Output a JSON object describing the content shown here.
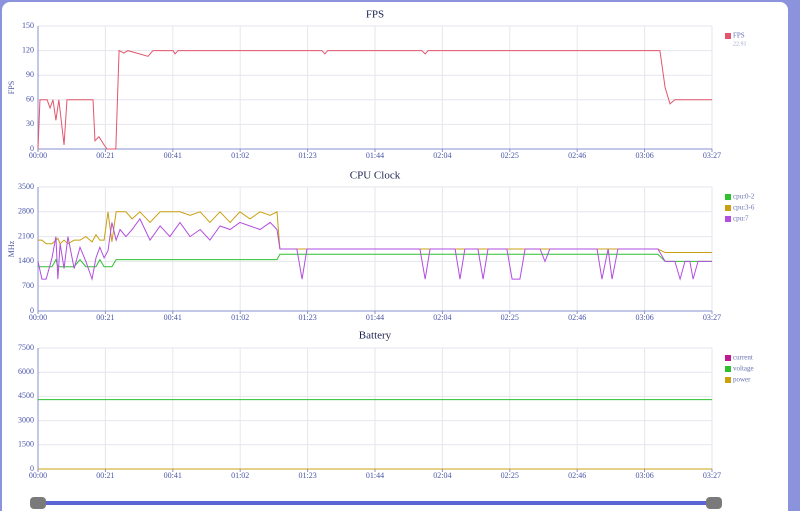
{
  "chart_data": [
    {
      "type": "line",
      "title": "FPS",
      "y_label": "FPS",
      "x": [
        0,
        0.6,
        2.8,
        3.7,
        4.6,
        5.5,
        6.4,
        8,
        8.9,
        16.9,
        17.5,
        18.7,
        20.3,
        21.2,
        23.9,
        24.9,
        26.4,
        27.6,
        33.8,
        35.3,
        41.5,
        42.1,
        43,
        87.2,
        88.1,
        89,
        117.9,
        118.9,
        119.8,
        191,
        192.6,
        194.1,
        195.6,
        207
      ],
      "series": [
        {
          "name": "FPS",
          "legend_value": "22.91",
          "color": "#e2566c",
          "values": [
            0,
            60,
            60,
            50,
            60,
            35,
            60,
            5,
            60,
            60,
            10,
            15,
            5,
            0,
            0,
            120,
            117,
            120,
            113,
            120,
            120,
            116,
            120,
            120,
            116,
            120,
            120,
            116,
            120,
            120,
            75,
            55,
            60,
            60
          ]
        }
      ],
      "xlim": [
        0,
        207
      ],
      "xticks": [
        {
          "value": 0,
          "label": "00:00"
        },
        {
          "value": 20.7,
          "label": "00:21"
        },
        {
          "value": 41.4,
          "label": "00:41"
        },
        {
          "value": 62.1,
          "label": "01:02"
        },
        {
          "value": 82.8,
          "label": "01:23"
        },
        {
          "value": 103.5,
          "label": "01:44"
        },
        {
          "value": 124.2,
          "label": "02:04"
        },
        {
          "value": 144.9,
          "label": "02:25"
        },
        {
          "value": 165.6,
          "label": "02:46"
        },
        {
          "value": 186.3,
          "label": "03:06"
        },
        {
          "value": 207,
          "label": "03:27"
        }
      ],
      "ylim": [
        0,
        150
      ],
      "yticks": [
        0,
        30,
        60,
        90,
        120,
        150
      ],
      "grid": true
    },
    {
      "type": "line",
      "title": "CPU Clock",
      "y_label": "MHz",
      "x": [
        0,
        1.2,
        2.5,
        4.3,
        5.5,
        6.1,
        6.8,
        8,
        9.2,
        11.1,
        12.9,
        14.7,
        16.6,
        17.8,
        19,
        20.3,
        21.5,
        22.7,
        24,
        25.2,
        27,
        28.9,
        31.3,
        34.4,
        37.5,
        40.5,
        43.6,
        46.7,
        49.8,
        52.8,
        55.9,
        59,
        62,
        65.1,
        68.2,
        71.3,
        73.4,
        74.3,
        77.4,
        79.5,
        81.1,
        82.6,
        117.3,
        118.9,
        120.4,
        128.1,
        129.6,
        131.1,
        135.1,
        136.7,
        138.2,
        144,
        145.6,
        148,
        149.6,
        154.2,
        155.7,
        157.2,
        171.7,
        173.2,
        175.1,
        176.3,
        178.1,
        190.4,
        192.6,
        195.6,
        197.2,
        198.7,
        200.2,
        201.2,
        202.7,
        207
      ],
      "series": [
        {
          "name": "cpu:0-2",
          "color": "#2ec02e",
          "values": [
            1250,
            1250,
            1250,
            1250,
            1450,
            1250,
            1250,
            1250,
            1250,
            1250,
            1450,
            1250,
            1250,
            1250,
            1450,
            1250,
            1250,
            1250,
            1450,
            1450,
            1450,
            1450,
            1450,
            1450,
            1450,
            1450,
            1450,
            1450,
            1450,
            1450,
            1450,
            1450,
            1450,
            1450,
            1450,
            1450,
            1450,
            1600,
            1600,
            1600,
            1600,
            1600,
            1600,
            1600,
            1600,
            1600,
            1600,
            1600,
            1600,
            1600,
            1600,
            1600,
            1600,
            1600,
            1600,
            1600,
            1600,
            1600,
            1600,
            1600,
            1600,
            1600,
            1600,
            1600,
            1400,
            1400,
            1400,
            1400,
            1400,
            1400,
            1400,
            1400
          ]
        },
        {
          "name": "cpu:3-6",
          "color": "#c8a010",
          "values": [
            2000,
            2000,
            1900,
            1900,
            2000,
            2050,
            1900,
            2000,
            1900,
            2000,
            2000,
            2100,
            1950,
            2150,
            2000,
            2000,
            2800,
            1950,
            2800,
            2800,
            2800,
            2600,
            2800,
            2500,
            2800,
            2800,
            2800,
            2700,
            2800,
            2500,
            2800,
            2500,
            2800,
            2600,
            2800,
            2700,
            2800,
            1750,
            1750,
            1750,
            1750,
            1750,
            1750,
            1750,
            1750,
            1750,
            1750,
            1750,
            1750,
            1750,
            1750,
            1750,
            1750,
            1750,
            1750,
            1750,
            1750,
            1750,
            1750,
            1750,
            1750,
            1750,
            1750,
            1750,
            1650,
            1650,
            1650,
            1650,
            1650,
            1650,
            1650,
            1650
          ]
        },
        {
          "name": "cpu:7",
          "color": "#b24ee0",
          "values": [
            1400,
            900,
            900,
            1500,
            2100,
            900,
            1900,
            1200,
            2100,
            1200,
            1800,
            1400,
            900,
            1500,
            1800,
            1500,
            1700,
            2500,
            2000,
            2300,
            2100,
            2300,
            2600,
            2000,
            2400,
            2100,
            2500,
            2100,
            2300,
            2000,
            2400,
            2300,
            2500,
            2400,
            2300,
            2500,
            2300,
            1750,
            1750,
            1750,
            900,
            1750,
            1750,
            900,
            1750,
            1750,
            900,
            1750,
            1750,
            900,
            1750,
            1750,
            900,
            900,
            1750,
            1750,
            1400,
            1750,
            1750,
            900,
            1750,
            900,
            1750,
            1750,
            1400,
            1400,
            900,
            1400,
            1400,
            900,
            1400,
            1400
          ]
        }
      ],
      "xlim": [
        0,
        207
      ],
      "xticks": [
        {
          "value": 0,
          "label": "00:00"
        },
        {
          "value": 20.7,
          "label": "00:21"
        },
        {
          "value": 41.4,
          "label": "00:41"
        },
        {
          "value": 62.1,
          "label": "01:02"
        },
        {
          "value": 82.8,
          "label": "01:23"
        },
        {
          "value": 103.5,
          "label": "01:44"
        },
        {
          "value": 124.2,
          "label": "02:04"
        },
        {
          "value": 144.9,
          "label": "02:25"
        },
        {
          "value": 165.6,
          "label": "02:46"
        },
        {
          "value": 186.3,
          "label": "03:06"
        },
        {
          "value": 207,
          "label": "03:27"
        }
      ],
      "ylim": [
        0,
        3500
      ],
      "yticks": [
        0,
        700,
        1400,
        2100,
        2800,
        3500
      ],
      "grid": true
    },
    {
      "type": "line",
      "title": "Battery",
      "x": [
        0,
        207
      ],
      "series": [
        {
          "name": "current",
          "color": "#c01890",
          "values": [
            0,
            0
          ]
        },
        {
          "name": "voltage",
          "color": "#2ec02e",
          "values": [
            4300,
            4300
          ]
        },
        {
          "name": "power",
          "color": "#c8a010",
          "values": [
            0,
            0
          ]
        }
      ],
      "xlim": [
        0,
        207
      ],
      "xticks": [
        {
          "value": 0,
          "label": "00:00"
        },
        {
          "value": 20.7,
          "label": "00:21"
        },
        {
          "value": 41.4,
          "label": "00:41"
        },
        {
          "value": 62.1,
          "label": "01:02"
        },
        {
          "value": 82.8,
          "label": "01:23"
        },
        {
          "value": 103.5,
          "label": "01:44"
        },
        {
          "value": 124.2,
          "label": "02:04"
        },
        {
          "value": 144.9,
          "label": "02:25"
        },
        {
          "value": 165.6,
          "label": "02:46"
        },
        {
          "value": 186.3,
          "label": "03:06"
        },
        {
          "value": 207,
          "label": "03:27"
        }
      ],
      "ylim": [
        0,
        7500
      ],
      "yticks": [
        0,
        1500,
        3000,
        4500,
        6000,
        7500
      ],
      "grid": true
    }
  ]
}
